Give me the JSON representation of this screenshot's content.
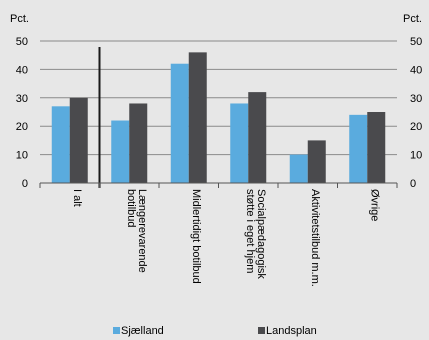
{
  "chart_data": {
    "type": "bar",
    "y_unit_label": "Pct.",
    "categories": [
      [
        "I alt"
      ],
      [
        "Længerevarende",
        "botilbud"
      ],
      [
        "Midlertidigt botilbud"
      ],
      [
        "Socialpædagogisk",
        "støtte i eget hjem"
      ],
      [
        "Aktivitetstilbud m.m."
      ],
      [
        "Øvrige"
      ]
    ],
    "series": [
      {
        "name": "Sjælland",
        "color": "#5aabde",
        "values": [
          27,
          22,
          42,
          28,
          10,
          24
        ]
      },
      {
        "name": "Landsplan",
        "color": "#4a4a4d",
        "values": [
          30,
          28,
          46,
          32,
          15,
          25
        ]
      }
    ],
    "ylim": [
      0,
      50
    ],
    "yticks": [
      0,
      10,
      20,
      30,
      40,
      50
    ],
    "grid": true,
    "legend_position": "bottom",
    "separator_after_first_category": true
  }
}
